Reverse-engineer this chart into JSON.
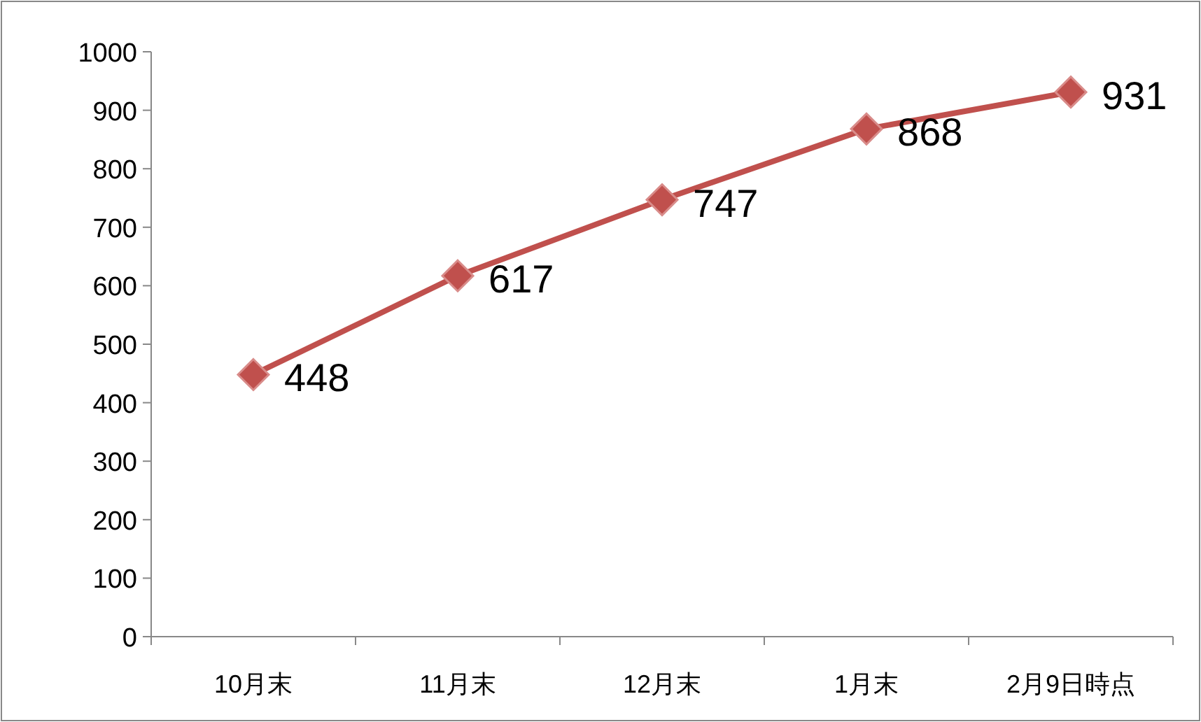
{
  "chart_data": {
    "type": "line",
    "categories": [
      "10月末",
      "11月末",
      "12月末",
      "1月末",
      "2月9日時点"
    ],
    "series": [
      {
        "color": "#c0504d",
        "values": [
          448,
          617,
          747,
          868,
          931
        ]
      }
    ],
    "ylim": [
      0,
      1000
    ],
    "yticks": [
      0,
      100,
      200,
      300,
      400,
      500,
      600,
      700,
      800,
      900,
      1000
    ],
    "marker": "diamond",
    "line_style": "solid",
    "data_labels": true,
    "grid": false
  }
}
